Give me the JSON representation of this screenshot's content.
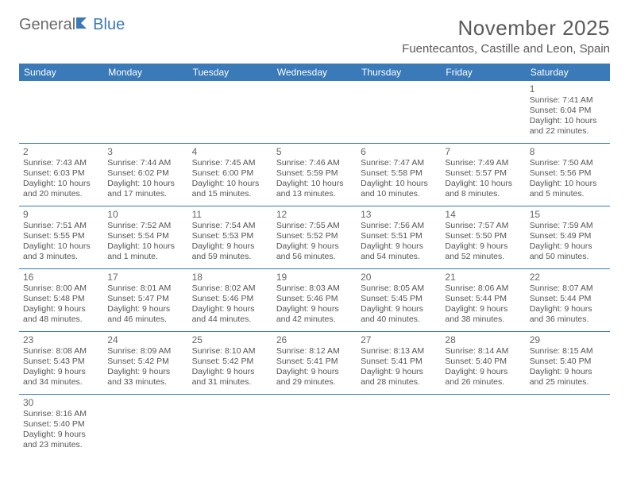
{
  "logo": {
    "part1": "General",
    "part2": "Blue"
  },
  "title": "November 2025",
  "subtitle": "Fuentecantos, Castille and Leon, Spain",
  "colors": {
    "header_bg": "#3a7ab8",
    "header_text": "#ffffff",
    "border": "#3a7ab8",
    "body_text": "#555555",
    "logo_gray": "#6a6a6a",
    "logo_blue": "#3a7ab8",
    "background": "#ffffff"
  },
  "typography": {
    "title_fontsize": 26,
    "subtitle_fontsize": 15,
    "header_fontsize": 12,
    "daynum_fontsize": 12,
    "line_fontsize": 10.5
  },
  "day_headers": [
    "Sunday",
    "Monday",
    "Tuesday",
    "Wednesday",
    "Thursday",
    "Friday",
    "Saturday"
  ],
  "weeks": [
    [
      null,
      null,
      null,
      null,
      null,
      null,
      {
        "n": "1",
        "sunrise": "Sunrise: 7:41 AM",
        "sunset": "Sunset: 6:04 PM",
        "dl1": "Daylight: 10 hours",
        "dl2": "and 22 minutes."
      }
    ],
    [
      {
        "n": "2",
        "sunrise": "Sunrise: 7:43 AM",
        "sunset": "Sunset: 6:03 PM",
        "dl1": "Daylight: 10 hours",
        "dl2": "and 20 minutes."
      },
      {
        "n": "3",
        "sunrise": "Sunrise: 7:44 AM",
        "sunset": "Sunset: 6:02 PM",
        "dl1": "Daylight: 10 hours",
        "dl2": "and 17 minutes."
      },
      {
        "n": "4",
        "sunrise": "Sunrise: 7:45 AM",
        "sunset": "Sunset: 6:00 PM",
        "dl1": "Daylight: 10 hours",
        "dl2": "and 15 minutes."
      },
      {
        "n": "5",
        "sunrise": "Sunrise: 7:46 AM",
        "sunset": "Sunset: 5:59 PM",
        "dl1": "Daylight: 10 hours",
        "dl2": "and 13 minutes."
      },
      {
        "n": "6",
        "sunrise": "Sunrise: 7:47 AM",
        "sunset": "Sunset: 5:58 PM",
        "dl1": "Daylight: 10 hours",
        "dl2": "and 10 minutes."
      },
      {
        "n": "7",
        "sunrise": "Sunrise: 7:49 AM",
        "sunset": "Sunset: 5:57 PM",
        "dl1": "Daylight: 10 hours",
        "dl2": "and 8 minutes."
      },
      {
        "n": "8",
        "sunrise": "Sunrise: 7:50 AM",
        "sunset": "Sunset: 5:56 PM",
        "dl1": "Daylight: 10 hours",
        "dl2": "and 5 minutes."
      }
    ],
    [
      {
        "n": "9",
        "sunrise": "Sunrise: 7:51 AM",
        "sunset": "Sunset: 5:55 PM",
        "dl1": "Daylight: 10 hours",
        "dl2": "and 3 minutes."
      },
      {
        "n": "10",
        "sunrise": "Sunrise: 7:52 AM",
        "sunset": "Sunset: 5:54 PM",
        "dl1": "Daylight: 10 hours",
        "dl2": "and 1 minute."
      },
      {
        "n": "11",
        "sunrise": "Sunrise: 7:54 AM",
        "sunset": "Sunset: 5:53 PM",
        "dl1": "Daylight: 9 hours",
        "dl2": "and 59 minutes."
      },
      {
        "n": "12",
        "sunrise": "Sunrise: 7:55 AM",
        "sunset": "Sunset: 5:52 PM",
        "dl1": "Daylight: 9 hours",
        "dl2": "and 56 minutes."
      },
      {
        "n": "13",
        "sunrise": "Sunrise: 7:56 AM",
        "sunset": "Sunset: 5:51 PM",
        "dl1": "Daylight: 9 hours",
        "dl2": "and 54 minutes."
      },
      {
        "n": "14",
        "sunrise": "Sunrise: 7:57 AM",
        "sunset": "Sunset: 5:50 PM",
        "dl1": "Daylight: 9 hours",
        "dl2": "and 52 minutes."
      },
      {
        "n": "15",
        "sunrise": "Sunrise: 7:59 AM",
        "sunset": "Sunset: 5:49 PM",
        "dl1": "Daylight: 9 hours",
        "dl2": "and 50 minutes."
      }
    ],
    [
      {
        "n": "16",
        "sunrise": "Sunrise: 8:00 AM",
        "sunset": "Sunset: 5:48 PM",
        "dl1": "Daylight: 9 hours",
        "dl2": "and 48 minutes."
      },
      {
        "n": "17",
        "sunrise": "Sunrise: 8:01 AM",
        "sunset": "Sunset: 5:47 PM",
        "dl1": "Daylight: 9 hours",
        "dl2": "and 46 minutes."
      },
      {
        "n": "18",
        "sunrise": "Sunrise: 8:02 AM",
        "sunset": "Sunset: 5:46 PM",
        "dl1": "Daylight: 9 hours",
        "dl2": "and 44 minutes."
      },
      {
        "n": "19",
        "sunrise": "Sunrise: 8:03 AM",
        "sunset": "Sunset: 5:46 PM",
        "dl1": "Daylight: 9 hours",
        "dl2": "and 42 minutes."
      },
      {
        "n": "20",
        "sunrise": "Sunrise: 8:05 AM",
        "sunset": "Sunset: 5:45 PM",
        "dl1": "Daylight: 9 hours",
        "dl2": "and 40 minutes."
      },
      {
        "n": "21",
        "sunrise": "Sunrise: 8:06 AM",
        "sunset": "Sunset: 5:44 PM",
        "dl1": "Daylight: 9 hours",
        "dl2": "and 38 minutes."
      },
      {
        "n": "22",
        "sunrise": "Sunrise: 8:07 AM",
        "sunset": "Sunset: 5:44 PM",
        "dl1": "Daylight: 9 hours",
        "dl2": "and 36 minutes."
      }
    ],
    [
      {
        "n": "23",
        "sunrise": "Sunrise: 8:08 AM",
        "sunset": "Sunset: 5:43 PM",
        "dl1": "Daylight: 9 hours",
        "dl2": "and 34 minutes."
      },
      {
        "n": "24",
        "sunrise": "Sunrise: 8:09 AM",
        "sunset": "Sunset: 5:42 PM",
        "dl1": "Daylight: 9 hours",
        "dl2": "and 33 minutes."
      },
      {
        "n": "25",
        "sunrise": "Sunrise: 8:10 AM",
        "sunset": "Sunset: 5:42 PM",
        "dl1": "Daylight: 9 hours",
        "dl2": "and 31 minutes."
      },
      {
        "n": "26",
        "sunrise": "Sunrise: 8:12 AM",
        "sunset": "Sunset: 5:41 PM",
        "dl1": "Daylight: 9 hours",
        "dl2": "and 29 minutes."
      },
      {
        "n": "27",
        "sunrise": "Sunrise: 8:13 AM",
        "sunset": "Sunset: 5:41 PM",
        "dl1": "Daylight: 9 hours",
        "dl2": "and 28 minutes."
      },
      {
        "n": "28",
        "sunrise": "Sunrise: 8:14 AM",
        "sunset": "Sunset: 5:40 PM",
        "dl1": "Daylight: 9 hours",
        "dl2": "and 26 minutes."
      },
      {
        "n": "29",
        "sunrise": "Sunrise: 8:15 AM",
        "sunset": "Sunset: 5:40 PM",
        "dl1": "Daylight: 9 hours",
        "dl2": "and 25 minutes."
      }
    ],
    [
      {
        "n": "30",
        "sunrise": "Sunrise: 8:16 AM",
        "sunset": "Sunset: 5:40 PM",
        "dl1": "Daylight: 9 hours",
        "dl2": "and 23 minutes."
      },
      null,
      null,
      null,
      null,
      null,
      null
    ]
  ]
}
